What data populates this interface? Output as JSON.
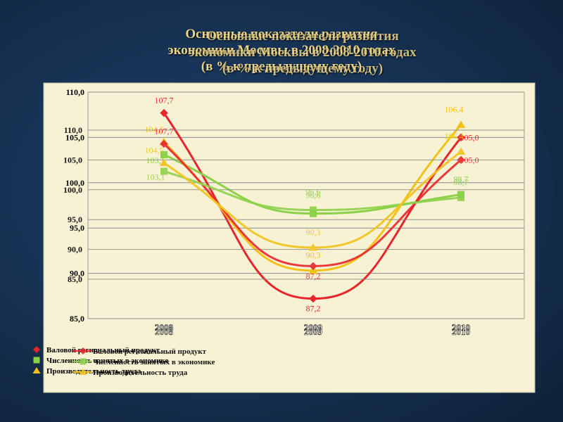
{
  "title": {
    "line1": "Основные показатели развития",
    "line2": "экономики Москвы в 2008-2010 годах",
    "line3": "(в % к предыдущему году)"
  },
  "colors": {
    "grp": "#e8252d",
    "employment": "#8dd14a",
    "productivity": "#f2c21b",
    "frame": "#f7f2d4"
  },
  "chart_data": [
    {
      "type": "line",
      "title": "Основные показатели развития экономики Москвы в 2008-2010 годах (в % к предыдущему году)",
      "categories": [
        "2008",
        "2009",
        "2010"
      ],
      "y_ticks": [
        "85,0",
        "90,0",
        "95,0",
        "100,0",
        "105,0",
        "110,0"
      ],
      "ylim": [
        85,
        110
      ],
      "series": [
        {
          "name": "Валовой региональный продукт",
          "values": [
            107.7,
            87.2,
            105.0
          ],
          "labels": [
            "107,7",
            "87,2",
            "105,0"
          ],
          "color_key": "grp",
          "marker": "diamond"
        },
        {
          "name": "Численность занятых в экономике",
          "values": [
            103.1,
            96.6,
            98.7
          ],
          "labels": [
            "103,1",
            "96,6",
            "98,7"
          ],
          "color_key": "employment",
          "marker": "square"
        },
        {
          "name": "Производительность труда",
          "values": [
            104.5,
            90.3,
            106.4
          ],
          "labels": [
            "104,5",
            "90,3",
            "106,4"
          ],
          "color_key": "productivity",
          "marker": "triangle"
        }
      ],
      "legend": "bottom-left",
      "grid": true
    },
    {
      "type": "line",
      "categories": [
        "2008",
        "2009",
        "2010"
      ],
      "y_ticks": [
        "85,0",
        "90,0",
        "95,0",
        "100,0",
        "105,0",
        "110,0"
      ],
      "ylim": [
        85,
        110
      ],
      "series": [
        {
          "name": "Валовой региональный продукт",
          "values": [
            107.7,
            87.2,
            105.0
          ],
          "labels": [
            "107,7",
            "87,2",
            "105,0"
          ],
          "color_key": "grp",
          "marker": "diamond"
        },
        {
          "name": "Численность занятых в экономике",
          "values": [
            103.1,
            96.6,
            98.7
          ],
          "labels": [
            "103,1",
            "96,6",
            "98,7"
          ],
          "color_key": "employment",
          "marker": "square"
        },
        {
          "name": "Производительность труда",
          "values": [
            104.5,
            90.3,
            106.4
          ],
          "labels": [
            "104,5",
            "90,3",
            "106,4"
          ],
          "color_key": "productivity",
          "marker": "triangle"
        }
      ],
      "legend": "bottom-left",
      "grid": true
    }
  ]
}
